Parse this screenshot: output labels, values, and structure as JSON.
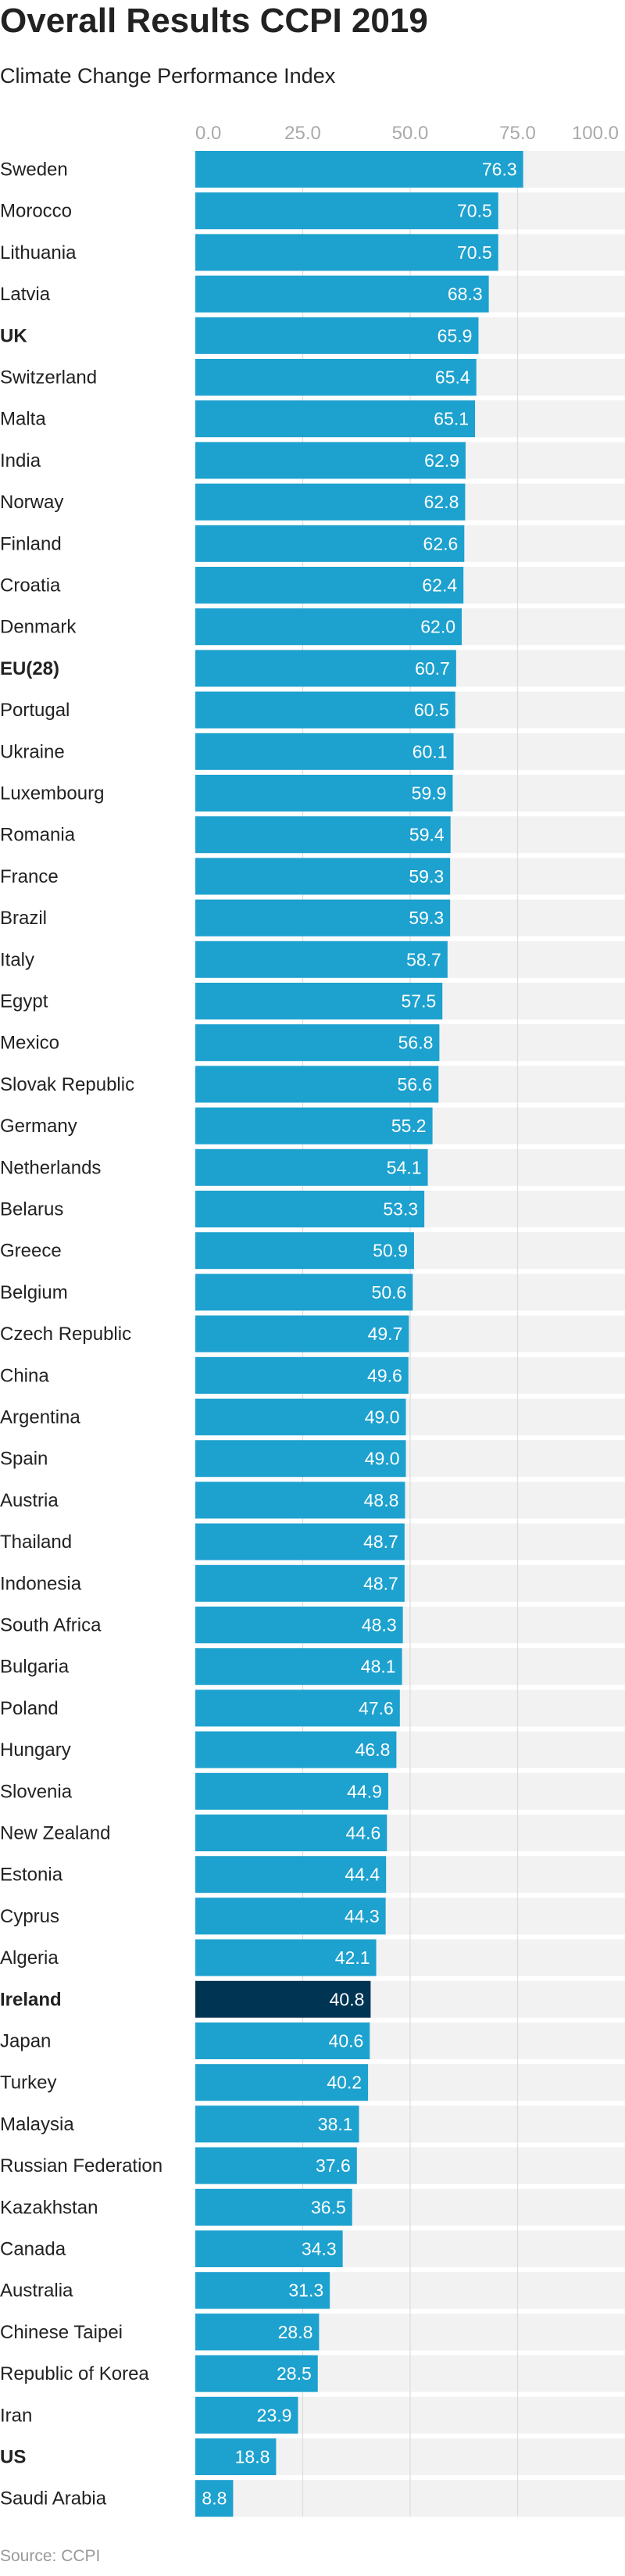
{
  "chart_data": {
    "type": "bar",
    "orientation": "horizontal",
    "title": "Overall Results CCPI 2019",
    "subtitle": "Climate Change Performance Index",
    "source": "Source: CCPI",
    "xlim": [
      0,
      100
    ],
    "ticks": [
      "0.0",
      "25.0",
      "50.0",
      "75.0",
      "100.0"
    ],
    "tick_values": [
      0,
      25,
      50,
      75,
      100
    ],
    "grid": true,
    "colors": {
      "bar": "#1da1cf",
      "highlight": "#003453",
      "background": "#f2f2f2",
      "grid": "#dcdcdc"
    },
    "categories": [
      "Sweden",
      "Morocco",
      "Lithuania",
      "Latvia",
      "UK",
      "Switzerland",
      "Malta",
      "India",
      "Norway",
      "Finland",
      "Croatia",
      "Denmark",
      "EU(28)",
      "Portugal",
      "Ukraine",
      "Luxembourg",
      "Romania",
      "France",
      "Brazil",
      "Italy",
      "Egypt",
      "Mexico",
      "Slovak Republic",
      "Germany",
      "Netherlands",
      "Belarus",
      "Greece",
      "Belgium",
      "Czech Republic",
      "China",
      "Argentina",
      "Spain",
      "Austria",
      "Thailand",
      "Indonesia",
      "South Africa",
      "Bulgaria",
      "Poland",
      "Hungary",
      "Slovenia",
      "New Zealand",
      "Estonia",
      "Cyprus",
      "Algeria",
      "Ireland",
      "Japan",
      "Turkey",
      "Malaysia",
      "Russian Federation",
      "Kazakhstan",
      "Canada",
      "Australia",
      "Chinese Taipei",
      "Republic of Korea",
      "Iran",
      "US",
      "Saudi Arabia"
    ],
    "values": [
      76.3,
      70.5,
      70.5,
      68.3,
      65.9,
      65.4,
      65.1,
      62.9,
      62.8,
      62.6,
      62.4,
      62.0,
      60.7,
      60.5,
      60.1,
      59.9,
      59.4,
      59.3,
      59.3,
      58.7,
      57.5,
      56.8,
      56.6,
      55.2,
      54.1,
      53.3,
      50.9,
      50.6,
      49.7,
      49.6,
      49.0,
      49.0,
      48.8,
      48.7,
      48.7,
      48.3,
      48.1,
      47.6,
      46.8,
      44.9,
      44.6,
      44.4,
      44.3,
      42.1,
      40.8,
      40.6,
      40.2,
      38.1,
      37.6,
      36.5,
      34.3,
      31.3,
      28.8,
      28.5,
      23.9,
      18.8,
      8.8
    ],
    "value_labels": [
      "76.3",
      "70.5",
      "70.5",
      "68.3",
      "65.9",
      "65.4",
      "65.1",
      "62.9",
      "62.8",
      "62.6",
      "62.4",
      "62.0",
      "60.7",
      "60.5",
      "60.1",
      "59.9",
      "59.4",
      "59.3",
      "59.3",
      "58.7",
      "57.5",
      "56.8",
      "56.6",
      "55.2",
      "54.1",
      "53.3",
      "50.9",
      "50.6",
      "49.7",
      "49.6",
      "49.0",
      "49.0",
      "48.8",
      "48.7",
      "48.7",
      "48.3",
      "48.1",
      "47.6",
      "46.8",
      "44.9",
      "44.6",
      "44.4",
      "44.3",
      "42.1",
      "40.8",
      "40.6",
      "40.2",
      "38.1",
      "37.6",
      "36.5",
      "34.3",
      "31.3",
      "28.8",
      "28.5",
      "23.9",
      "18.8",
      "8.8"
    ],
    "bold_categories": [
      "UK",
      "EU(28)",
      "Ireland",
      "US"
    ],
    "highlight_categories": [
      "Ireland"
    ]
  }
}
